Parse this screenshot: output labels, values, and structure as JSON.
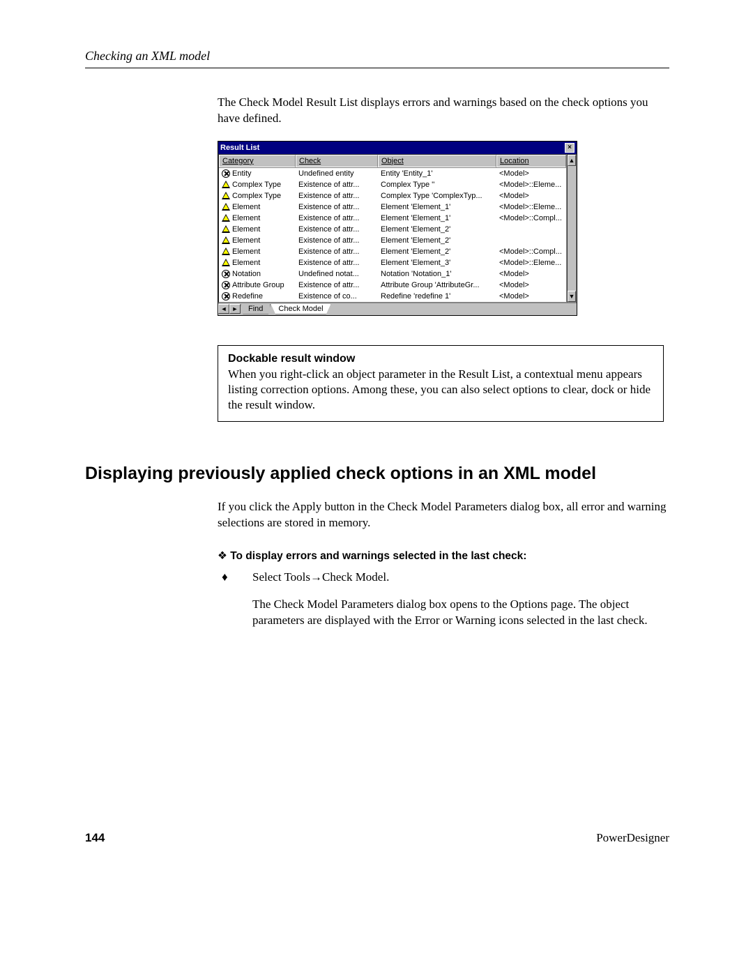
{
  "running_head": "Checking an XML model",
  "intro": "The Check Model Result List displays errors and warnings based on the check options you have defined.",
  "panel": {
    "title": "Result List",
    "close_glyph": "×",
    "headers": {
      "category": "Category",
      "check": "Check",
      "object": "Object",
      "location": "Location"
    },
    "scroll_up": "▲",
    "scroll_down": "▼",
    "nav_prev": "◄",
    "nav_next": "►",
    "tabs": {
      "find": "Find",
      "check_model": "Check Model"
    },
    "rows": [
      {
        "icon": "err",
        "category": "Entity",
        "check": "Undefined entity",
        "object": "Entity 'Entity_1'",
        "location": "<Model>"
      },
      {
        "icon": "warn",
        "category": "Complex Type",
        "check": "Existence of attr...",
        "object": "Complex Type ''",
        "location": "<Model>::Eleme..."
      },
      {
        "icon": "warn",
        "category": "Complex Type",
        "check": "Existence of attr...",
        "object": "Complex Type 'ComplexTyp...",
        "location": "<Model>"
      },
      {
        "icon": "warn",
        "category": "Element",
        "check": "Existence of attr...",
        "object": "Element 'Element_1'",
        "location": "<Model>::Eleme..."
      },
      {
        "icon": "warn",
        "category": "Element",
        "check": "Existence of attr...",
        "object": "Element 'Element_1'",
        "location": "<Model>::Compl..."
      },
      {
        "icon": "warn",
        "category": "Element",
        "check": "Existence of attr...",
        "object": "Element 'Element_2'",
        "location": ""
      },
      {
        "icon": "warn",
        "category": "Element",
        "check": "Existence of attr...",
        "object": "Element 'Element_2'",
        "location": ""
      },
      {
        "icon": "warn",
        "category": "Element",
        "check": "Existence of attr...",
        "object": "Element 'Element_2'",
        "location": "<Model>::Compl..."
      },
      {
        "icon": "warn",
        "category": "Element",
        "check": "Existence of attr...",
        "object": "Element 'Element_3'",
        "location": "<Model>::Eleme..."
      },
      {
        "icon": "err",
        "category": "Notation",
        "check": "Undefined notat...",
        "object": "Notation 'Notation_1'",
        "location": "<Model>"
      },
      {
        "icon": "err",
        "category": "Attribute Group",
        "check": "Existence of attr...",
        "object": "Attribute Group 'AttributeGr...",
        "location": "<Model>"
      },
      {
        "icon": "err",
        "category": "Redefine",
        "check": "Existence of co...",
        "object": "Redefine 'redefine 1'",
        "location": "<Model>"
      }
    ]
  },
  "dockable": {
    "title": "Dockable result window",
    "body": "When you right-click an object parameter in the Result List, a contextual menu appears listing correction options. Among these, you can also select options to clear, dock or hide the result window."
  },
  "section_heading": "Displaying previously applied check options in an XML model",
  "section_intro": "If you click the Apply button in the Check Model Parameters dialog box, all error and warning selections are stored in memory.",
  "steps_heading": "To display errors and warnings selected in the last check:",
  "step1": "Select Tools→Check Model.",
  "step1_after": "The Check Model Parameters dialog box opens to the Options page. The object parameters are displayed with the Error or Warning icons selected in the last check.",
  "footer": {
    "page": "144",
    "product": "PowerDesigner"
  }
}
